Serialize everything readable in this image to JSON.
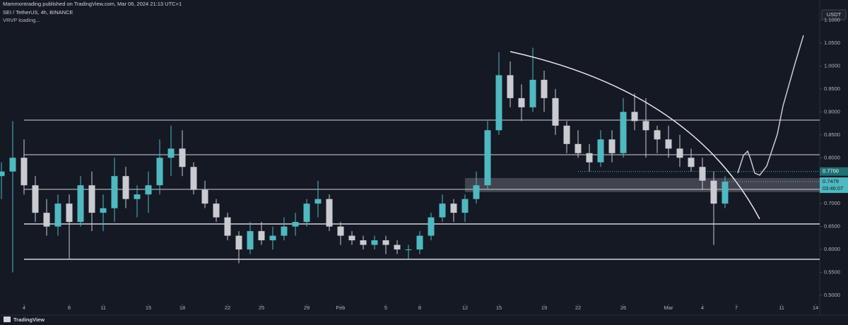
{
  "chart_data": {
    "type": "candlestick",
    "header": "Mammontrading published on TradingView.com, Mar 06, 2024 21:13 UTC+1",
    "title": "SEI / TetherUS, 4h, BINANCE",
    "subtitle": "VRVP loading...",
    "currency": "USDT",
    "footer": "TradingView",
    "up_color": "#4fb9c1",
    "down_color": "#c9cbd1",
    "x": [
      "2024-01-02",
      "2024-01-03",
      "2024-01-04",
      "2024-01-05",
      "2024-01-06",
      "2024-01-07",
      "2024-01-08",
      "2024-01-09",
      "2024-01-10",
      "2024-01-11",
      "2024-01-12",
      "2024-01-13",
      "2024-01-14",
      "2024-01-15",
      "2024-01-16",
      "2024-01-17",
      "2024-01-18",
      "2024-01-19",
      "2024-01-20",
      "2024-01-21",
      "2024-01-22",
      "2024-01-23",
      "2024-01-24",
      "2024-01-25",
      "2024-01-26",
      "2024-01-27",
      "2024-01-28",
      "2024-01-29",
      "2024-01-30",
      "2024-01-31",
      "2024-02-01",
      "2024-02-02",
      "2024-02-03",
      "2024-02-04",
      "2024-02-05",
      "2024-02-06",
      "2024-02-07",
      "2024-02-08",
      "2024-02-09",
      "2024-02-10",
      "2024-02-11",
      "2024-02-12",
      "2024-02-13",
      "2024-02-14",
      "2024-02-15",
      "2024-02-16",
      "2024-02-17",
      "2024-02-18",
      "2024-02-19",
      "2024-02-20",
      "2024-02-21",
      "2024-02-22",
      "2024-02-23",
      "2024-02-24",
      "2024-02-25",
      "2024-02-26",
      "2024-02-27",
      "2024-02-28",
      "2024-02-29",
      "2024-03-01",
      "2024-03-02",
      "2024-03-03",
      "2024-03-04",
      "2024-03-05",
      "2024-03-06"
    ],
    "open": [
      0.76,
      0.77,
      0.8,
      0.74,
      0.68,
      0.65,
      0.7,
      0.66,
      0.74,
      0.68,
      0.69,
      0.76,
      0.71,
      0.72,
      0.74,
      0.8,
      0.82,
      0.78,
      0.73,
      0.7,
      0.67,
      0.63,
      0.6,
      0.64,
      0.62,
      0.63,
      0.65,
      0.66,
      0.7,
      0.71,
      0.65,
      0.63,
      0.62,
      0.61,
      0.62,
      0.61,
      0.6,
      0.6,
      0.63,
      0.67,
      0.7,
      0.68,
      0.71,
      0.74,
      0.86,
      0.98,
      0.93,
      0.91,
      0.97,
      0.93,
      0.87,
      0.83,
      0.81,
      0.79,
      0.84,
      0.81,
      0.9,
      0.88,
      0.86,
      0.84,
      0.82,
      0.8,
      0.78,
      0.75,
      0.7
    ],
    "high": [
      0.79,
      0.88,
      0.84,
      0.76,
      0.71,
      0.72,
      0.72,
      0.76,
      0.77,
      0.72,
      0.8,
      0.78,
      0.74,
      0.77,
      0.84,
      0.87,
      0.86,
      0.79,
      0.75,
      0.71,
      0.68,
      0.64,
      0.66,
      0.66,
      0.65,
      0.67,
      0.68,
      0.71,
      0.75,
      0.72,
      0.66,
      0.64,
      0.63,
      0.63,
      0.63,
      0.62,
      0.61,
      0.64,
      0.68,
      0.72,
      0.71,
      0.72,
      0.77,
      0.88,
      1.03,
      1.01,
      0.96,
      1.04,
      0.99,
      0.95,
      0.88,
      0.86,
      0.83,
      0.86,
      0.86,
      0.93,
      0.94,
      0.93,
      0.87,
      0.87,
      0.85,
      0.82,
      0.8,
      0.77,
      0.76
    ],
    "low": [
      0.71,
      0.55,
      0.72,
      0.66,
      0.63,
      0.63,
      0.58,
      0.65,
      0.64,
      0.64,
      0.66,
      0.69,
      0.67,
      0.68,
      0.72,
      0.76,
      0.76,
      0.72,
      0.69,
      0.66,
      0.62,
      0.57,
      0.59,
      0.61,
      0.6,
      0.62,
      0.63,
      0.65,
      0.67,
      0.64,
      0.61,
      0.61,
      0.6,
      0.6,
      0.59,
      0.59,
      0.58,
      0.59,
      0.62,
      0.66,
      0.66,
      0.66,
      0.7,
      0.73,
      0.85,
      0.91,
      0.88,
      0.9,
      0.9,
      0.85,
      0.81,
      0.8,
      0.77,
      0.78,
      0.79,
      0.8,
      0.86,
      0.8,
      0.81,
      0.8,
      0.78,
      0.77,
      0.73,
      0.61,
      0.69
    ],
    "close": [
      0.77,
      0.8,
      0.74,
      0.68,
      0.65,
      0.7,
      0.66,
      0.74,
      0.68,
      0.69,
      0.76,
      0.71,
      0.72,
      0.74,
      0.8,
      0.82,
      0.78,
      0.73,
      0.7,
      0.67,
      0.63,
      0.6,
      0.64,
      0.62,
      0.63,
      0.65,
      0.66,
      0.7,
      0.71,
      0.65,
      0.63,
      0.62,
      0.61,
      0.62,
      0.61,
      0.6,
      0.6,
      0.63,
      0.67,
      0.7,
      0.68,
      0.71,
      0.74,
      0.86,
      0.98,
      0.93,
      0.91,
      0.97,
      0.93,
      0.87,
      0.83,
      0.81,
      0.79,
      0.84,
      0.81,
      0.9,
      0.88,
      0.86,
      0.84,
      0.82,
      0.8,
      0.78,
      0.75,
      0.7,
      0.7479
    ],
    "levels": [
      0.882,
      0.8066,
      0.731,
      0.6556,
      0.5786
    ],
    "zone": [
      0.725,
      0.7558
    ],
    "marked_price": {
      "value": 0.77,
      "label": "0.7700"
    },
    "marked_from": "2024-02-22",
    "last_price": 0.7479,
    "countdown": "03:46:07",
    "xlim": [
      "2024-01-01T21:00:00Z",
      "2024-03-14T09:00:00Z"
    ],
    "xticks": [
      {
        "value": "2024-01-04",
        "label": "4"
      },
      {
        "value": "2024-01-08",
        "label": "8"
      },
      {
        "value": "2024-01-11",
        "label": "11"
      },
      {
        "value": "2024-01-15",
        "label": "15"
      },
      {
        "value": "2024-01-18",
        "label": "18"
      },
      {
        "value": "2024-01-22",
        "label": "22"
      },
      {
        "value": "2024-01-25",
        "label": "25"
      },
      {
        "value": "2024-01-29",
        "label": "29"
      },
      {
        "value": "2024-02-01",
        "label": "Feb"
      },
      {
        "value": "2024-02-05",
        "label": "5"
      },
      {
        "value": "2024-02-08",
        "label": "8"
      },
      {
        "value": "2024-02-12",
        "label": "12"
      },
      {
        "value": "2024-02-15",
        "label": "15"
      },
      {
        "value": "2024-02-19",
        "label": "19"
      },
      {
        "value": "2024-02-22",
        "label": "22"
      },
      {
        "value": "2024-02-26",
        "label": "26"
      },
      {
        "value": "2024-03-01",
        "label": "Mar"
      },
      {
        "value": "2024-03-04",
        "label": "4"
      },
      {
        "value": "2024-03-07",
        "label": "7"
      },
      {
        "value": "2024-03-11",
        "label": "11"
      },
      {
        "value": "2024-03-14",
        "label": "14"
      }
    ],
    "ylim": [
      0.4815,
      1.144
    ],
    "yticks": [
      {
        "value": 0.5,
        "label": "0.5000"
      },
      {
        "value": 0.55,
        "label": "0.5500"
      },
      {
        "value": 0.6,
        "label": "0.6000"
      },
      {
        "value": 0.65,
        "label": "0.6500"
      },
      {
        "value": 0.7,
        "label": "0.7000"
      },
      {
        "value": 0.75,
        "label": "0.7500"
      },
      {
        "value": 0.8,
        "label": "0.8000"
      },
      {
        "value": 0.85,
        "label": "0.8500"
      },
      {
        "value": 0.9,
        "label": "0.9000"
      },
      {
        "value": 0.95,
        "label": "0.9500"
      },
      {
        "value": 1.0,
        "label": "1.0000"
      },
      {
        "value": 1.05,
        "label": "1.0500"
      },
      {
        "value": 1.1,
        "label": "1.1000"
      }
    ]
  }
}
